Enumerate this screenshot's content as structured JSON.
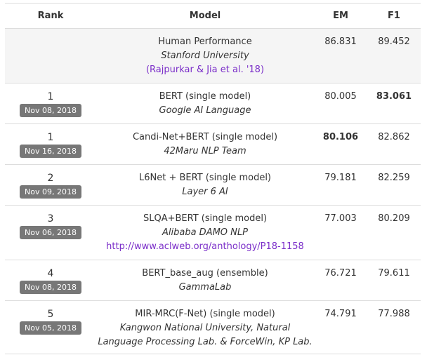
{
  "headers": {
    "rank": "Rank",
    "model": "Model",
    "em": "EM",
    "f1": "F1"
  },
  "rows": [
    {
      "rank": "",
      "date": "",
      "model": "Human Performance",
      "org": [
        "Stanford University"
      ],
      "link": "(Rajpurkar & Jia et al. '18)",
      "em": "86.831",
      "f1": "89.452",
      "em_bold": false,
      "f1_bold": false,
      "human": true
    },
    {
      "rank": "1",
      "date": "Nov 08, 2018",
      "model": "BERT (single model)",
      "org": [
        "Google AI Language"
      ],
      "link": "",
      "em": "80.005",
      "f1": "83.061",
      "em_bold": false,
      "f1_bold": true,
      "human": false
    },
    {
      "rank": "1",
      "date": "Nov 16, 2018",
      "model": "Candi-Net+BERT (single model)",
      "org": [
        "42Maru NLP Team"
      ],
      "link": "",
      "em": "80.106",
      "f1": "82.862",
      "em_bold": true,
      "f1_bold": false,
      "human": false
    },
    {
      "rank": "2",
      "date": "Nov 09, 2018",
      "model": "L6Net + BERT (single model)",
      "org": [
        "Layer 6 AI"
      ],
      "link": "",
      "em": "79.181",
      "f1": "82.259",
      "em_bold": false,
      "f1_bold": false,
      "human": false
    },
    {
      "rank": "3",
      "date": "Nov 06, 2018",
      "model": "SLQA+BERT (single model)",
      "org": [
        "Alibaba DAMO NLP"
      ],
      "link": "http://www.aclweb.org/anthology/P18-1158",
      "em": "77.003",
      "f1": "80.209",
      "em_bold": false,
      "f1_bold": false,
      "human": false
    },
    {
      "rank": "4",
      "date": "Nov 08, 2018",
      "model": "BERT_base_aug (ensemble)",
      "org": [
        "GammaLab"
      ],
      "link": "",
      "em": "76.721",
      "f1": "79.611",
      "em_bold": false,
      "f1_bold": false,
      "human": false
    },
    {
      "rank": "5",
      "date": "Nov 05, 2018",
      "model": "MIR-MRC(F-Net) (single model)",
      "org": [
        "Kangwon National University, Natural",
        "Language Processing Lab. & ForceWin, KP Lab."
      ],
      "link": "",
      "em": "74.791",
      "f1": "77.988",
      "em_bold": false,
      "f1_bold": false,
      "human": false
    }
  ],
  "colors": {
    "badge": "#777777",
    "link": "#7b2fc9",
    "human_row_bg": "#f5f5f5"
  }
}
